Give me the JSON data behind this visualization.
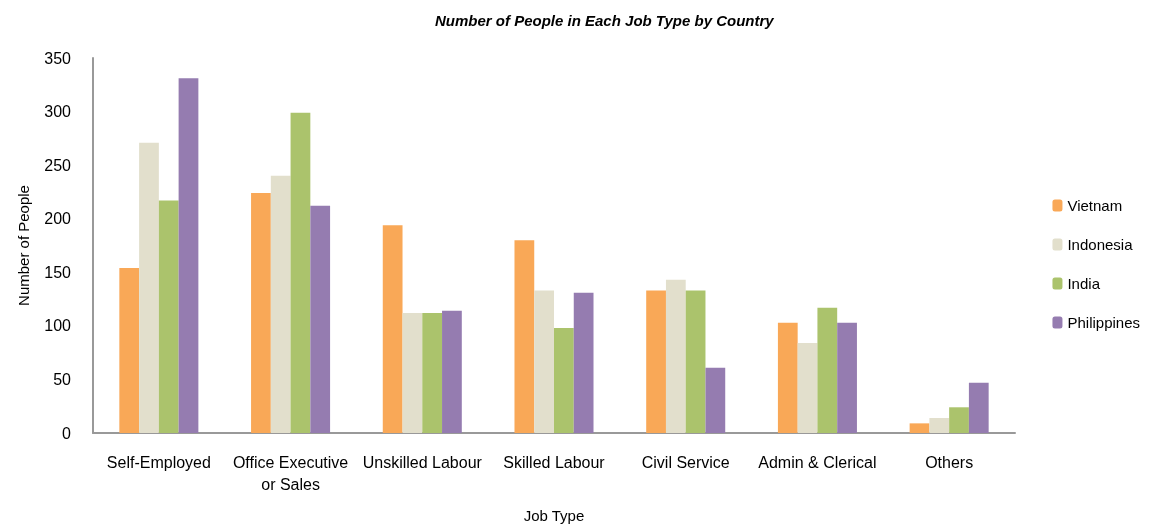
{
  "chart_data": {
    "type": "bar",
    "title": "Number of People in Each Job Type by Country",
    "xlabel": "Job Type",
    "ylabel": "Number of People",
    "categories": [
      "Self-Employed",
      "Office Executive or Sales",
      "Unskilled Labour",
      "Skilled Labour",
      "Civil Service",
      "Admin & Clerical",
      "Others"
    ],
    "series": [
      {
        "name": "Vietnam",
        "color": "#f9a857",
        "values": [
          154,
          224,
          194,
          180,
          133,
          103,
          9
        ]
      },
      {
        "name": "Indonesia",
        "color": "#e2dfcc",
        "values": [
          271,
          240,
          112,
          133,
          143,
          84,
          14
        ]
      },
      {
        "name": "India",
        "color": "#abc36c",
        "values": [
          217,
          299,
          112,
          98,
          133,
          117,
          24
        ]
      },
      {
        "name": "Philippines",
        "color": "#957cb0",
        "values": [
          331,
          212,
          114,
          131,
          61,
          103,
          47
        ]
      }
    ],
    "ylim": [
      0,
      350
    ],
    "yticks": [
      0,
      50,
      100,
      150,
      200,
      250,
      300,
      350
    ],
    "grid": false,
    "legend": "right"
  }
}
